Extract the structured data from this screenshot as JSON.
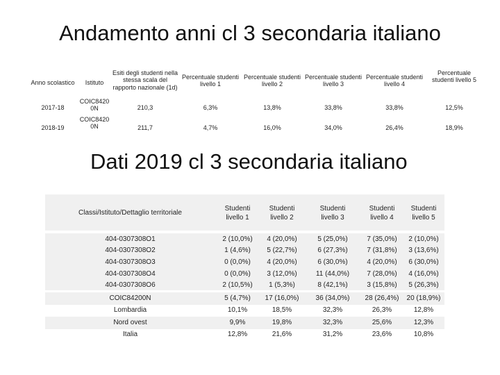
{
  "slide1": {
    "title": "Andamento anni cl 3 secondaria italiano",
    "headers": [
      "Anno scolastico",
      "Istituto",
      "Esiti degli studenti nella stessa scala del rapporto nazionale (1d)",
      "Percentuale studenti livello 1",
      "Percentuale studenti livello 2",
      "Percentuale studenti livello 3",
      "Percentuale studenti livello 4",
      "Percentuale studenti livello 5"
    ],
    "rows": [
      [
        "2017-18",
        "COIC8420 0N",
        "210,3",
        "6,3%",
        "13,8%",
        "33,8%",
        "33,8%",
        "12,5%"
      ],
      [
        "2018-19",
        "COIC8420 0N",
        "211,7",
        "4,7%",
        "16,0%",
        "34,0%",
        "26,4%",
        "18,9%"
      ]
    ]
  },
  "slide2": {
    "title": "Dati 2019 cl 3 secondaria italiano",
    "headers": [
      "Classi/Istituto/Dettaglio territoriale",
      "Studenti livello 1",
      "Studenti livello 2",
      "Studenti livello 3",
      "Studenti livello 4",
      "Studenti livello 5"
    ],
    "rows": [
      [
        "404-0307308O1",
        "2 (10,0%)",
        "4 (20,0%)",
        "5 (25,0%)",
        "7 (35,0%)",
        "2 (10,0%)"
      ],
      [
        "404-0307308O2",
        "1 (4,6%)",
        "5 (22,7%)",
        "6 (27,3%)",
        "7 (31,8%)",
        "3 (13,6%)"
      ],
      [
        "404-0307308O3",
        "0 (0,0%)",
        "4 (20,0%)",
        "6 (30,0%)",
        "4 (20,0%)",
        "6 (30,0%)"
      ],
      [
        "404-0307308O4",
        "0 (0,0%)",
        "3 (12,0%)",
        "11 (44,0%)",
        "7 (28,0%)",
        "4 (16,0%)"
      ],
      [
        "404-0307308O6",
        "2 (10,5%)",
        "1 (5,3%)",
        "8 (42,1%)",
        "3 (15,8%)",
        "5 (26,3%)"
      ],
      [
        "COIC84200N",
        "5 (4,7%)",
        "17 (16,0%)",
        "36 (34,0%)",
        "28 (26,4%)",
        "20 (18,9%)"
      ],
      [
        "Lombardia",
        "10,1%",
        "18,5%",
        "32,3%",
        "26,3%",
        "12,8%"
      ],
      [
        "Nord ovest",
        "9,9%",
        "19,8%",
        "32,3%",
        "25,6%",
        "12,3%"
      ],
      [
        "Italia",
        "12,8%",
        "21,6%",
        "31,2%",
        "23,6%",
        "10,8%"
      ]
    ]
  }
}
